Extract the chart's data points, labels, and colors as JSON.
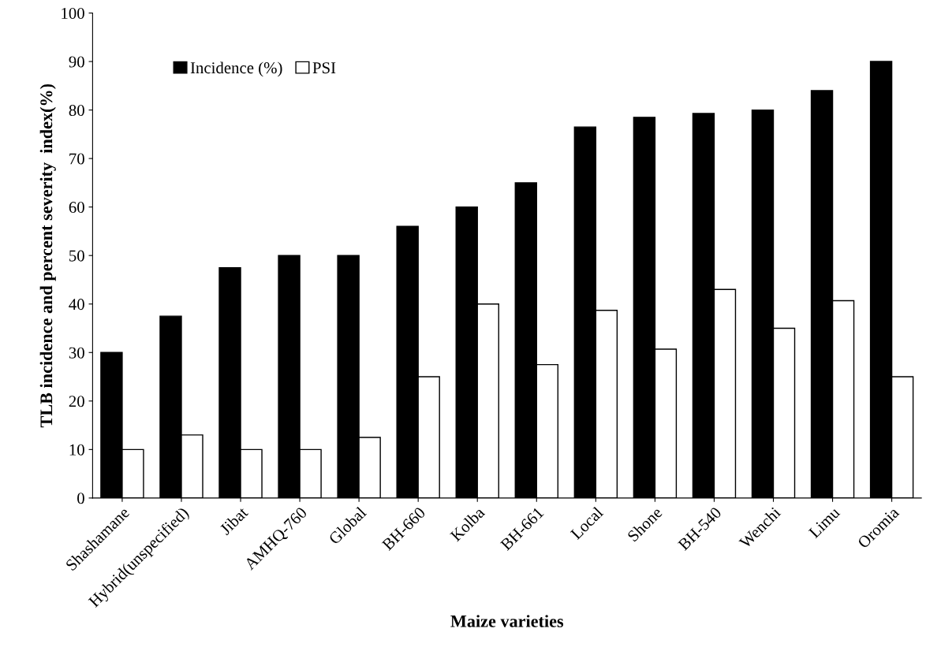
{
  "chart_data": {
    "type": "bar",
    "xlabel": "Maize varieties",
    "ylabel": "TLB incidence and percent severity  index(%)",
    "categories": [
      "Shashamane",
      "Hybrid(unspecified)",
      "Jibat",
      "AMHQ-760",
      "Global",
      "BH-660",
      "Kolba",
      "BH-661",
      "Local",
      "Shone",
      "BH-540",
      "Wenchi",
      "Limu",
      "Oromia"
    ],
    "series": [
      {
        "name": "Incidence (%)",
        "color": "#000000",
        "values": [
          30,
          37.5,
          47.5,
          50,
          50,
          56,
          60,
          65,
          76.5,
          78.5,
          79.3,
          80,
          84,
          90
        ]
      },
      {
        "name": "PSI",
        "color": "#ffffff",
        "values": [
          10,
          13,
          10,
          10,
          12.5,
          25,
          40,
          27.5,
          38.7,
          30.7,
          43,
          35,
          40.7,
          25
        ]
      }
    ],
    "ylim": [
      0,
      100
    ],
    "yticks": [
      0,
      10,
      20,
      30,
      40,
      50,
      60,
      70,
      80,
      90,
      100
    ],
    "grid": false,
    "legend": "top left"
  }
}
